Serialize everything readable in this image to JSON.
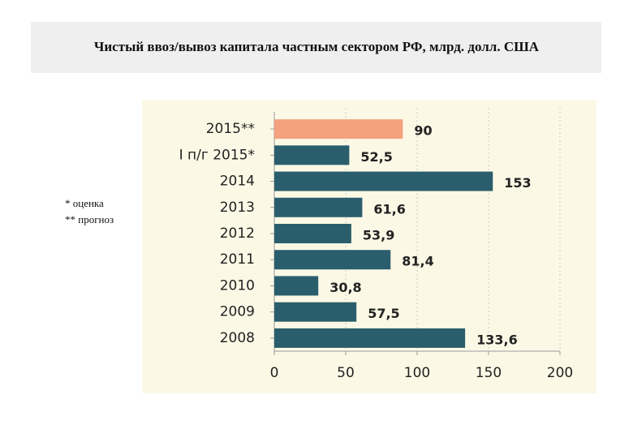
{
  "chart_data": {
    "type": "bar",
    "orientation": "horizontal",
    "title": "Чистый ввоз/вывоз капитала частным сектором РФ, млрд. долл. США",
    "categories": [
      "2015**",
      "I п/г 2015*",
      "2014",
      "2013",
      "2012",
      "2011",
      "2010",
      "2009",
      "2008"
    ],
    "values": [
      90,
      52.5,
      153,
      61.6,
      53.9,
      81.4,
      30.8,
      57.5,
      133.6
    ],
    "value_labels": [
      "90",
      "52,5",
      "153",
      "61,6",
      "53,9",
      "81,4",
      "30,8",
      "57,5",
      "133,6"
    ],
    "colors": [
      "#f4a27e",
      "#2b5e6c",
      "#2b5e6c",
      "#2b5e6c",
      "#2b5e6c",
      "#2b5e6c",
      "#2b5e6c",
      "#2b5e6c",
      "#2b5e6c"
    ],
    "xlim": [
      0,
      200
    ],
    "xticks": [
      0,
      50,
      100,
      150,
      200
    ],
    "grid": true
  },
  "notes": [
    "* оценка",
    "** прогноз"
  ]
}
